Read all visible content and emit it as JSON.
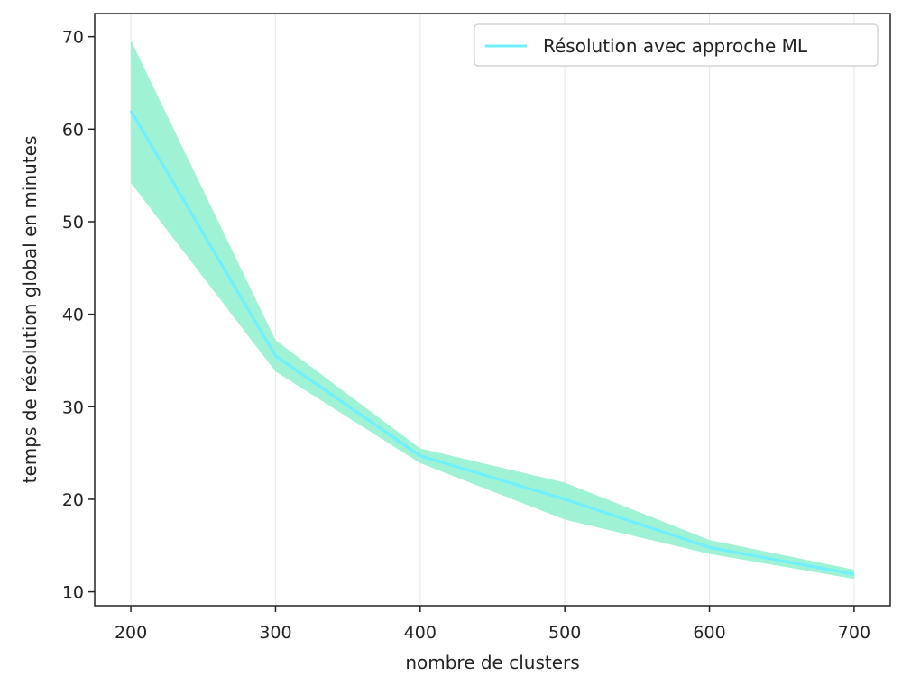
{
  "chart_data": {
    "type": "line",
    "title": "",
    "xlabel": "nombre de clusters",
    "ylabel": "temps de résolution global en minutes",
    "x": [
      200,
      300,
      400,
      500,
      600,
      700
    ],
    "xlim": [
      175,
      725
    ],
    "ylim": [
      8.5,
      72.5
    ],
    "xticks": [
      200,
      300,
      400,
      500,
      600,
      700
    ],
    "yticks": [
      10,
      20,
      30,
      40,
      50,
      60,
      70
    ],
    "grid": "vertical",
    "legend_position": "top-right",
    "series": [
      {
        "name": "Résolution avec approche ML",
        "values": [
          62,
          35.5,
          24.7,
          20,
          14.8,
          11.9
        ],
        "band_lower": [
          54.2,
          33.8,
          23.9,
          17.8,
          14.1,
          11.4
        ],
        "band_upper": [
          69.6,
          37.2,
          25.5,
          21.8,
          15.6,
          12.4
        ],
        "color": "#6ff0ff",
        "band_color": "#8ff0cc"
      }
    ]
  }
}
